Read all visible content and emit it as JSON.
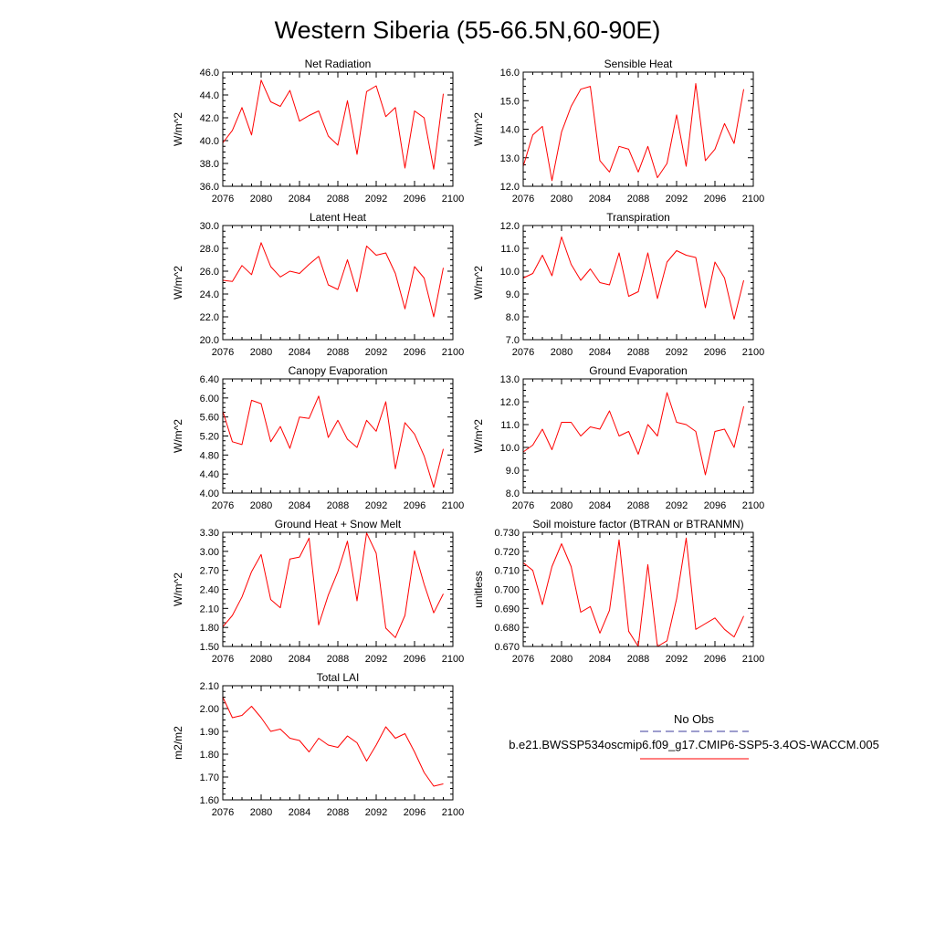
{
  "page": {
    "title": "Western Siberia (55-66.5N,60-90E)"
  },
  "legend": {
    "obs_label": "No Obs",
    "obs_color": "#3b3b9e",
    "model_label": "b.e21.BWSSP534oscmip6.f09_g17.CMIP6-SSP5-3.4OS-WACCM.005",
    "model_color": "#ff0000"
  },
  "chart_data": [
    {
      "type": "line",
      "title": "Net Radiation",
      "ylabel": "W/m^2",
      "xlim": [
        2076,
        2100
      ],
      "ylim": [
        36.0,
        46.0
      ],
      "xticks": [
        "2076",
        "2080",
        "2084",
        "2088",
        "2092",
        "2096",
        "2100"
      ],
      "yticks": [
        "36.0",
        "38.0",
        "40.0",
        "42.0",
        "44.0",
        "46.0"
      ],
      "x": [
        2076,
        2077,
        2078,
        2079,
        2080,
        2081,
        2082,
        2083,
        2084,
        2085,
        2086,
        2087,
        2088,
        2089,
        2090,
        2091,
        2092,
        2093,
        2094,
        2095,
        2096,
        2097,
        2098,
        2099
      ],
      "values": [
        39.8,
        40.9,
        42.9,
        40.5,
        45.3,
        43.4,
        43.0,
        44.4,
        41.7,
        42.2,
        42.6,
        40.4,
        39.6,
        43.5,
        38.8,
        44.3,
        44.8,
        42.1,
        42.9,
        37.6,
        42.6,
        42.0,
        37.5,
        44.1
      ],
      "color": "#ff0000"
    },
    {
      "type": "line",
      "title": "Sensible Heat",
      "ylabel": "W/m^2",
      "xlim": [
        2076,
        2100
      ],
      "ylim": [
        12.0,
        16.0
      ],
      "xticks": [
        "2076",
        "2080",
        "2084",
        "2088",
        "2092",
        "2096",
        "2100"
      ],
      "yticks": [
        "12.0",
        "13.0",
        "14.0",
        "15.0",
        "16.0"
      ],
      "x": [
        2076,
        2077,
        2078,
        2079,
        2080,
        2081,
        2082,
        2083,
        2084,
        2085,
        2086,
        2087,
        2088,
        2089,
        2090,
        2091,
        2092,
        2093,
        2094,
        2095,
        2096,
        2097,
        2098,
        2099
      ],
      "values": [
        12.7,
        13.8,
        14.1,
        12.2,
        13.9,
        14.8,
        15.4,
        15.5,
        12.9,
        12.5,
        13.4,
        13.3,
        12.5,
        13.4,
        12.3,
        12.8,
        14.5,
        12.7,
        15.6,
        12.9,
        13.3,
        14.2,
        13.5,
        15.4
      ],
      "color": "#ff0000"
    },
    {
      "type": "line",
      "title": "Latent Heat",
      "ylabel": "W/m^2",
      "xlim": [
        2076,
        2100
      ],
      "ylim": [
        20.0,
        30.0
      ],
      "xticks": [
        "2076",
        "2080",
        "2084",
        "2088",
        "2092",
        "2096",
        "2100"
      ],
      "yticks": [
        "20.0",
        "22.0",
        "24.0",
        "26.0",
        "28.0",
        "30.0"
      ],
      "x": [
        2076,
        2077,
        2078,
        2079,
        2080,
        2081,
        2082,
        2083,
        2084,
        2085,
        2086,
        2087,
        2088,
        2089,
        2090,
        2091,
        2092,
        2093,
        2094,
        2095,
        2096,
        2097,
        2098,
        2099
      ],
      "values": [
        25.2,
        25.1,
        26.5,
        25.7,
        28.5,
        26.4,
        25.5,
        26.0,
        25.8,
        26.6,
        27.3,
        24.8,
        24.4,
        27.0,
        24.2,
        28.2,
        27.4,
        27.6,
        25.8,
        22.7,
        26.4,
        25.4,
        22.0,
        26.3
      ],
      "color": "#ff0000"
    },
    {
      "type": "line",
      "title": "Transpiration",
      "ylabel": "W/m^2",
      "xlim": [
        2076,
        2100
      ],
      "ylim": [
        7.0,
        12.0
      ],
      "xticks": [
        "2076",
        "2080",
        "2084",
        "2088",
        "2092",
        "2096",
        "2100"
      ],
      "yticks": [
        "7.0",
        "8.0",
        "9.0",
        "10.0",
        "11.0",
        "12.0"
      ],
      "x": [
        2076,
        2077,
        2078,
        2079,
        2080,
        2081,
        2082,
        2083,
        2084,
        2085,
        2086,
        2087,
        2088,
        2089,
        2090,
        2091,
        2092,
        2093,
        2094,
        2095,
        2096,
        2097,
        2098,
        2099
      ],
      "values": [
        9.7,
        9.9,
        10.7,
        9.8,
        11.5,
        10.3,
        9.6,
        10.1,
        9.5,
        9.4,
        10.8,
        8.9,
        9.1,
        10.8,
        8.8,
        10.4,
        10.9,
        10.7,
        10.6,
        8.4,
        10.4,
        9.7,
        7.9,
        9.6
      ],
      "color": "#ff0000"
    },
    {
      "type": "line",
      "title": "Canopy Evaporation",
      "ylabel": "W/m^2",
      "xlim": [
        2076,
        2100
      ],
      "ylim": [
        4.0,
        6.4
      ],
      "xticks": [
        "2076",
        "2080",
        "2084",
        "2088",
        "2092",
        "2096",
        "2100"
      ],
      "yticks": [
        "4.00",
        "4.40",
        "4.80",
        "5.20",
        "5.60",
        "6.00",
        "6.40"
      ],
      "x": [
        2076,
        2077,
        2078,
        2079,
        2080,
        2081,
        2082,
        2083,
        2084,
        2085,
        2086,
        2087,
        2088,
        2089,
        2090,
        2091,
        2092,
        2093,
        2094,
        2095,
        2096,
        2097,
        2098,
        2099
      ],
      "values": [
        5.72,
        5.08,
        5.02,
        5.95,
        5.88,
        5.08,
        5.4,
        4.94,
        5.6,
        5.57,
        6.04,
        5.17,
        5.53,
        5.13,
        4.96,
        5.53,
        5.3,
        5.92,
        4.51,
        5.48,
        5.24,
        4.78,
        4.12,
        4.93
      ],
      "color": "#ff0000"
    },
    {
      "type": "line",
      "title": "Ground Evaporation",
      "ylabel": "W/m^2",
      "xlim": [
        2076,
        2100
      ],
      "ylim": [
        8.0,
        13.0
      ],
      "xticks": [
        "2076",
        "2080",
        "2084",
        "2088",
        "2092",
        "2096",
        "2100"
      ],
      "yticks": [
        "8.0",
        "9.0",
        "10.0",
        "11.0",
        "12.0",
        "13.0"
      ],
      "x": [
        2076,
        2077,
        2078,
        2079,
        2080,
        2081,
        2082,
        2083,
        2084,
        2085,
        2086,
        2087,
        2088,
        2089,
        2090,
        2091,
        2092,
        2093,
        2094,
        2095,
        2096,
        2097,
        2098,
        2099
      ],
      "values": [
        9.8,
        10.1,
        10.8,
        9.9,
        11.1,
        11.1,
        10.5,
        10.9,
        10.8,
        11.6,
        10.5,
        10.7,
        9.7,
        11.0,
        10.5,
        12.4,
        11.1,
        11.0,
        10.7,
        8.8,
        10.7,
        10.8,
        10.0,
        11.8
      ],
      "color": "#ff0000"
    },
    {
      "type": "line",
      "title": "Ground Heat + Snow Melt",
      "ylabel": "W/m^2",
      "xlim": [
        2076,
        2100
      ],
      "ylim": [
        1.5,
        3.3
      ],
      "xticks": [
        "2076",
        "2080",
        "2084",
        "2088",
        "2092",
        "2096",
        "2100"
      ],
      "yticks": [
        "1.50",
        "1.80",
        "2.10",
        "2.40",
        "2.70",
        "3.00",
        "3.30"
      ],
      "x": [
        2076,
        2077,
        2078,
        2079,
        2080,
        2081,
        2082,
        2083,
        2084,
        2085,
        2086,
        2087,
        2088,
        2089,
        2090,
        2091,
        2092,
        2093,
        2094,
        2095,
        2096,
        2097,
        2098,
        2099
      ],
      "values": [
        1.81,
        1.99,
        2.28,
        2.68,
        2.95,
        2.24,
        2.11,
        2.88,
        2.91,
        3.21,
        1.84,
        2.31,
        2.68,
        3.16,
        2.22,
        3.29,
        2.97,
        1.79,
        1.64,
        1.99,
        3.01,
        2.48,
        2.03,
        2.33
      ],
      "color": "#ff0000"
    },
    {
      "type": "line",
      "title": "Soil moisture factor (BTRAN or BTRANMN)",
      "ylabel": "unitless",
      "xlim": [
        2076,
        2100
      ],
      "ylim": [
        0.67,
        0.73
      ],
      "xticks": [
        "2076",
        "2080",
        "2084",
        "2088",
        "2092",
        "2096",
        "2100"
      ],
      "yticks": [
        "0.670",
        "0.680",
        "0.690",
        "0.700",
        "0.710",
        "0.720",
        "0.730"
      ],
      "x": [
        2076,
        2077,
        2078,
        2079,
        2080,
        2081,
        2082,
        2083,
        2084,
        2085,
        2086,
        2087,
        2088,
        2089,
        2090,
        2091,
        2092,
        2093,
        2094,
        2095,
        2096,
        2097,
        2098,
        2099
      ],
      "values": [
        0.714,
        0.71,
        0.692,
        0.712,
        0.724,
        0.712,
        0.688,
        0.691,
        0.677,
        0.689,
        0.726,
        0.678,
        0.67,
        0.713,
        0.67,
        0.673,
        0.695,
        0.727,
        0.679,
        0.682,
        0.685,
        0.679,
        0.675,
        0.686
      ],
      "color": "#ff0000"
    },
    {
      "type": "line",
      "title": "Total LAI",
      "ylabel": "m2/m2",
      "xlim": [
        2076,
        2100
      ],
      "ylim": [
        1.6,
        2.1
      ],
      "xticks": [
        "2076",
        "2080",
        "2084",
        "2088",
        "2092",
        "2096",
        "2100"
      ],
      "yticks": [
        "1.60",
        "1.70",
        "1.80",
        "1.90",
        "2.00",
        "2.10"
      ],
      "x": [
        2076,
        2077,
        2078,
        2079,
        2080,
        2081,
        2082,
        2083,
        2084,
        2085,
        2086,
        2087,
        2088,
        2089,
        2090,
        2091,
        2092,
        2093,
        2094,
        2095,
        2096,
        2097,
        2098,
        2099
      ],
      "values": [
        2.05,
        1.96,
        1.97,
        2.01,
        1.96,
        1.9,
        1.91,
        1.87,
        1.86,
        1.81,
        1.87,
        1.84,
        1.83,
        1.88,
        1.85,
        1.77,
        1.84,
        1.92,
        1.87,
        1.89,
        1.81,
        1.72,
        1.66,
        1.67
      ],
      "color": "#ff0000"
    }
  ]
}
